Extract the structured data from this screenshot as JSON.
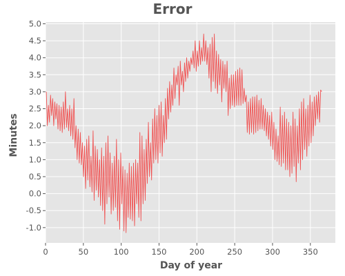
{
  "chart_data": {
    "type": "line",
    "title": "Error",
    "xlabel": "Day of year",
    "ylabel": "Minutes",
    "xlim": [
      0,
      383
    ],
    "ylim": [
      -1.45,
      5.05
    ],
    "xticks": [
      0,
      50,
      100,
      150,
      200,
      250,
      300,
      350
    ],
    "yticks": [
      -1.0,
      -0.5,
      0.0,
      0.5,
      1.0,
      1.5,
      2.0,
      2.5,
      3.0,
      3.5,
      4.0,
      4.5,
      5.0
    ],
    "grid": true,
    "colors": {
      "background": "#e5e5e5",
      "line": "#f05050"
    },
    "series": [
      {
        "values": [
          3.0,
          2.0,
          2.6,
          2.1,
          2.9,
          2.3,
          2.8,
          2.0,
          2.7,
          2.2,
          2.65,
          1.9,
          2.6,
          1.85,
          2.55,
          1.8,
          2.7,
          1.9,
          3.0,
          1.95,
          2.5,
          1.85,
          2.6,
          1.7,
          2.5,
          1.6,
          2.8,
          1.35,
          2.0,
          1.0,
          1.9,
          0.9,
          1.8,
          0.85,
          1.5,
          0.5,
          1.4,
          0.15,
          1.6,
          0.4,
          1.7,
          0.2,
          1.1,
          0.05,
          1.85,
          -0.2,
          1.4,
          0.1,
          1.3,
          -0.1,
          1.0,
          -0.35,
          1.35,
          -0.5,
          1.1,
          -0.9,
          1.5,
          -0.3,
          1.7,
          -0.1,
          1.2,
          -0.6,
          0.9,
          -0.5,
          1.1,
          -0.4,
          1.6,
          -0.8,
          1.0,
          -1.05,
          1.2,
          -0.3,
          0.8,
          -1.1,
          0.7,
          -1.15,
          0.6,
          -0.7,
          0.9,
          -0.75,
          0.8,
          -0.8,
          0.9,
          -0.95,
          1.0,
          -0.3,
          0.9,
          -0.7,
          1.8,
          -0.8,
          1.7,
          -0.3,
          1.3,
          -0.2,
          1.6,
          0.3,
          2.1,
          0.5,
          1.5,
          0.4,
          2.2,
          0.9,
          2.5,
          1.0,
          2.3,
          0.9,
          2.6,
          1.2,
          2.7,
          1.1,
          2.3,
          1.5,
          2.8,
          1.6,
          3.1,
          2.2,
          3.3,
          2.4,
          3.2,
          2.6,
          3.7,
          2.8,
          3.5,
          3.2,
          3.75,
          2.6,
          3.9,
          3.2,
          3.6,
          3.0,
          3.85,
          3.3,
          4.0,
          3.4,
          3.9,
          3.6,
          4.0,
          3.8,
          4.2,
          3.7,
          4.5,
          3.6,
          4.2,
          3.75,
          4.5,
          3.8,
          4.3,
          3.9,
          4.7,
          3.9,
          4.5,
          3.8,
          4.3,
          3.4,
          4.4,
          3.0,
          4.6,
          3.3,
          4.7,
          3.1,
          4.2,
          2.95,
          4.1,
          3.2,
          3.95,
          2.7,
          3.9,
          3.1,
          3.8,
          3.0,
          3.9,
          2.3,
          3.4,
          2.5,
          3.5,
          2.6,
          3.5,
          2.55,
          3.6,
          2.6,
          3.65,
          2.6,
          3.7,
          2.6,
          3.65,
          2.65,
          3.1,
          2.7,
          2.9,
          1.8,
          2.7,
          1.75,
          2.8,
          1.8,
          2.85,
          1.75,
          2.85,
          1.8,
          2.9,
          1.85,
          2.75,
          1.9,
          2.8,
          1.9,
          2.6,
          1.85,
          2.5,
          1.7,
          2.4,
          1.6,
          2.3,
          1.4,
          2.4,
          1.3,
          2.1,
          1.0,
          1.9,
          0.95,
          1.7,
          0.85,
          2.55,
          0.8,
          2.3,
          0.9,
          2.4,
          0.7,
          2.2,
          0.7,
          2.1,
          0.5,
          2.0,
          0.6,
          2.4,
          0.8,
          2.2,
          0.35,
          2.0,
          0.9,
          2.5,
          0.7,
          2.7,
          1.0,
          2.8,
          1.3,
          2.5,
          1.1,
          2.6,
          1.4,
          2.9,
          1.5,
          2.7,
          1.7,
          2.85,
          2.0,
          2.9,
          2.2,
          3.0,
          2.1,
          3.05,
          3.0
        ]
      }
    ]
  }
}
